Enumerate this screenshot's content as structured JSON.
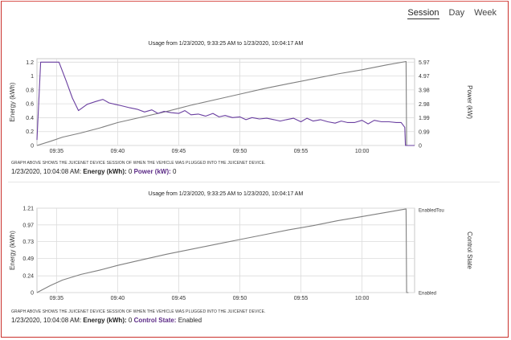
{
  "tabs": [
    {
      "label": "Session",
      "active": true
    },
    {
      "label": "Day",
      "active": false
    },
    {
      "label": "Week",
      "active": false
    }
  ],
  "colors": {
    "energy": "#7f7f7f",
    "power": "#6a3fa0",
    "grid": "#dcdcdc",
    "accent": "#c9302c"
  },
  "chart1": {
    "title": "Usage from 1/23/2020, 9:33:25 AM to 1/23/2020, 10:04:17 AM",
    "caption": "GRAPH ABOVE SHOWS THE JUICENET DEVICE SESSION OF WHEN THE VEHICLE WAS PLUGGED INTO THE JUICENET DEVICE.",
    "readout_time": "1/23/2020, 10:04:08 AM:",
    "readout_energy_label": "Energy (kWh):",
    "readout_energy_value": "0",
    "readout_power_label": "Power (kW):",
    "readout_power_value": "0"
  },
  "chart2": {
    "title": "Usage from 1/23/2020, 9:33:25 AM to 1/23/2020, 10:04:17 AM",
    "caption": "GRAPH ABOVE SHOWS THE JUICENET DEVICE SESSION OF WHEN THE VEHICLE WAS PLUGGED INTO THE JUICENET DEVICE.",
    "readout_time": "1/23/2020, 10:04:08 AM:",
    "readout_energy_label": "Energy (kWh):",
    "readout_energy_value": "0",
    "readout_state_label": "Control State:",
    "readout_state_value": "Enabled"
  },
  "chart_data": [
    {
      "type": "line",
      "title": "Usage from 1/23/2020, 9:33:25 AM to 1/23/2020, 10:04:17 AM",
      "xlabel": "",
      "ylabel": "Energy (kWh)",
      "ylabel_right": "Power (kW)",
      "x_range": [
        33.4,
        64.3
      ],
      "x_ticks": [
        35,
        40,
        45,
        50,
        55,
        60
      ],
      "x_tick_labels": [
        "09:35",
        "09:40",
        "09:45",
        "09:50",
        "09:55",
        "10:00"
      ],
      "ylim": [
        0,
        1.25
      ],
      "y_ticks": [
        0,
        0.2,
        0.4,
        0.6,
        0.8,
        1,
        1.2
      ],
      "y_tick_labels": [
        "0",
        "0.2",
        "0.4",
        "0.6",
        "0.8",
        "1",
        "1.2"
      ],
      "ylim_right": [
        0,
        6.22
      ],
      "y_ticks_right": [
        0,
        0.99,
        1.99,
        2.98,
        3.98,
        4.97,
        5.97
      ],
      "y_tick_labels_right": [
        "0",
        "0.99",
        "1.99",
        "2.98",
        "3.98",
        "4.97",
        "5.97"
      ],
      "grid": true,
      "series": [
        {
          "name": "Energy (kWh)",
          "axis": "left",
          "x": [
            33.4,
            34.5,
            35.5,
            37,
            38.5,
            40,
            42,
            44,
            46,
            48,
            50,
            52,
            54,
            56,
            58,
            60,
            62,
            63.6,
            63.65,
            63.8
          ],
          "y": [
            0,
            0.06,
            0.12,
            0.18,
            0.25,
            0.33,
            0.41,
            0.49,
            0.58,
            0.66,
            0.74,
            0.82,
            0.89,
            0.96,
            1.03,
            1.09,
            1.16,
            1.21,
            0,
            0
          ]
        },
        {
          "name": "Power (kW)",
          "axis": "right",
          "x": [
            33.4,
            33.7,
            34.2,
            35.2,
            35.8,
            36.3,
            36.8,
            37.5,
            38.2,
            38.8,
            39.3,
            39.8,
            40.3,
            41.0,
            41.6,
            42.2,
            42.8,
            43.3,
            43.8,
            44.4,
            45.0,
            45.5,
            46.0,
            46.6,
            47.2,
            47.8,
            48.3,
            48.8,
            49.4,
            50.0,
            50.5,
            51.0,
            51.6,
            52.2,
            52.8,
            53.3,
            53.8,
            54.4,
            55.0,
            55.5,
            56.0,
            56.6,
            57.2,
            57.8,
            58.3,
            58.8,
            59.4,
            60.0,
            60.5,
            61.0,
            61.6,
            62.2,
            62.8,
            63.2,
            63.5,
            63.55,
            64.3
          ],
          "y": [
            0.4,
            5.97,
            5.97,
            5.97,
            4.6,
            3.4,
            2.5,
            2.95,
            3.15,
            3.3,
            3.05,
            2.95,
            2.85,
            2.7,
            2.6,
            2.4,
            2.55,
            2.3,
            2.45,
            2.35,
            2.3,
            2.5,
            2.2,
            2.25,
            2.1,
            2.3,
            2.05,
            2.15,
            2.0,
            2.05,
            1.85,
            2.0,
            1.9,
            1.95,
            1.85,
            1.75,
            1.85,
            1.95,
            1.7,
            1.95,
            1.75,
            1.85,
            1.7,
            1.6,
            1.75,
            1.65,
            1.65,
            1.8,
            1.55,
            1.8,
            1.7,
            1.7,
            1.65,
            1.65,
            1.3,
            0,
            0
          ]
        }
      ]
    },
    {
      "type": "line",
      "title": "Usage from 1/23/2020, 9:33:25 AM to 1/23/2020, 10:04:17 AM",
      "xlabel": "",
      "ylabel": "Energy (kWh)",
      "ylabel_right": "Control State",
      "x_range": [
        33.4,
        64.3
      ],
      "x_ticks": [
        35,
        40,
        45,
        50,
        55,
        60
      ],
      "x_tick_labels": [
        "09:35",
        "09:40",
        "09:45",
        "09:50",
        "09:55",
        "10:00"
      ],
      "ylim": [
        0,
        1.21
      ],
      "y_ticks": [
        0,
        0.24,
        0.49,
        0.73,
        0.97,
        1.21
      ],
      "y_tick_labels": [
        "0",
        "0.24",
        "0.49",
        "0.73",
        "0.97",
        "1.21"
      ],
      "y_tick_labels_right": [
        "EnabledTou",
        "Enabled"
      ],
      "grid": true,
      "series": [
        {
          "name": "Energy (kWh)",
          "axis": "left",
          "x": [
            33.4,
            34.5,
            35.5,
            37,
            38.5,
            40,
            42,
            44,
            46,
            48,
            50,
            52,
            54,
            56,
            58,
            60,
            62,
            63.6,
            63.65,
            63.8
          ],
          "y": [
            0,
            0.1,
            0.18,
            0.26,
            0.32,
            0.39,
            0.47,
            0.55,
            0.62,
            0.69,
            0.76,
            0.83,
            0.9,
            0.96,
            1.03,
            1.09,
            1.15,
            1.2,
            0,
            0
          ]
        }
      ]
    }
  ]
}
